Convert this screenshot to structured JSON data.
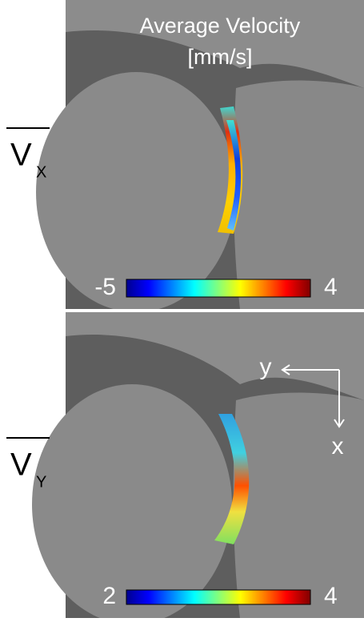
{
  "title": "Average Velocity",
  "unit": "[mm/s]",
  "panels": [
    {
      "label": "V",
      "subscript": "X",
      "colorbar": {
        "min": -5,
        "max": 4
      }
    },
    {
      "label": "V",
      "subscript": "Y",
      "colorbar": {
        "min": 2,
        "max": 4
      }
    }
  ],
  "axes": {
    "horizontal": "y",
    "vertical": "x"
  }
}
